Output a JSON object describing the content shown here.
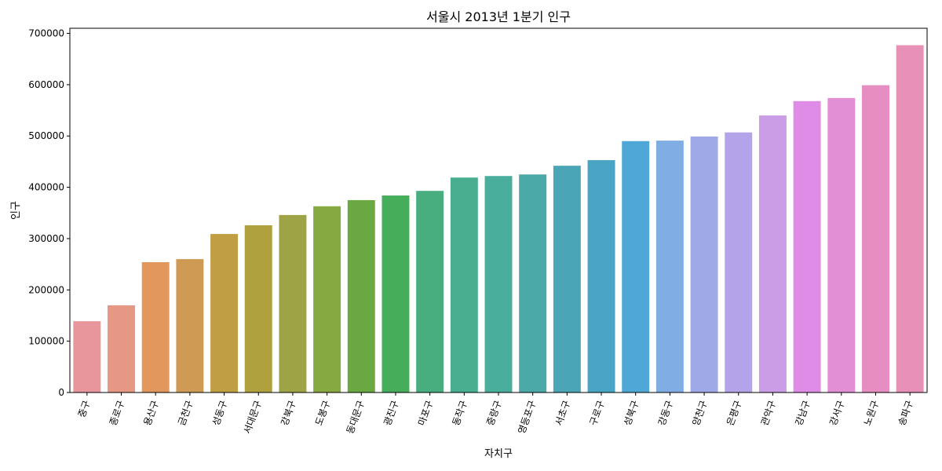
{
  "chart_data": {
    "type": "bar",
    "title": "서울시 2013년 1분기 인구",
    "xlabel": "자치구",
    "ylabel": "인구",
    "ylim": [
      0,
      710000
    ],
    "yticks": [
      0,
      100000,
      200000,
      300000,
      400000,
      500000,
      600000,
      700000
    ],
    "grid": false,
    "categories": [
      "중구",
      "종로구",
      "용산구",
      "금천구",
      "성동구",
      "서대문구",
      "강북구",
      "도봉구",
      "동대문구",
      "광진구",
      "마포구",
      "동작구",
      "중랑구",
      "영등포구",
      "서초구",
      "구로구",
      "성북구",
      "강동구",
      "양천구",
      "은평구",
      "관악구",
      "강남구",
      "강서구",
      "노원구",
      "송파구"
    ],
    "values": [
      139000,
      170000,
      254000,
      260000,
      309000,
      326000,
      346000,
      363000,
      375000,
      384000,
      393000,
      419000,
      422000,
      425000,
      442000,
      453000,
      490000,
      491000,
      499000,
      507000,
      540000,
      568000,
      574000,
      599000,
      677000
    ],
    "colors": [
      "#e8969c",
      "#e59884",
      "#e2975c",
      "#cf9b54",
      "#c09e43",
      "#b0a13f",
      "#9ea446",
      "#87a942",
      "#6aa942",
      "#46ad5a",
      "#48ae7f",
      "#49ae90",
      "#4aae9c",
      "#4ba9a8",
      "#4aa6b6",
      "#4aa4c4",
      "#4fa7d7",
      "#7fade4",
      "#a0a9e8",
      "#b5a3e9",
      "#cb9de7",
      "#de8ce5",
      "#e38fd5",
      "#e68dc1",
      "#e891b6"
    ]
  }
}
